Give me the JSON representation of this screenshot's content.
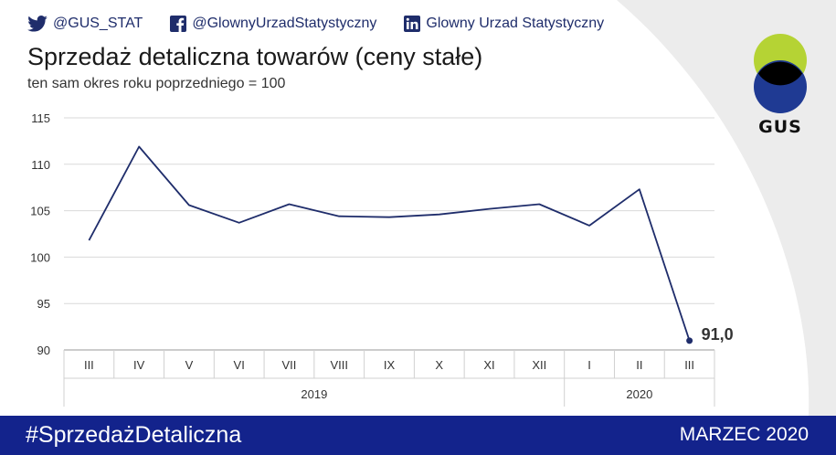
{
  "social": {
    "twitter": "@GUS_STAT",
    "facebook": "@GlownyUrzadStatystyczny",
    "linkedin": "Glowny Urzad Statystyczny"
  },
  "header": {
    "title": "Sprzedaż detaliczna towarów (ceny stałe)",
    "subtitle": "ten sam okres roku poprzedniego = 100"
  },
  "logo": {
    "text": "GUS",
    "colors": [
      "#b5d334",
      "#1f3a93",
      "#000000"
    ]
  },
  "footer": {
    "hashtag": "#SprzedażDetaliczna",
    "period": "MARZEC 2020",
    "background": "#13238c"
  },
  "chart_data": {
    "type": "line",
    "categories": [
      "III",
      "IV",
      "V",
      "VI",
      "VII",
      "VIII",
      "IX",
      "X",
      "XI",
      "XII",
      "I",
      "II",
      "III"
    ],
    "groups": [
      {
        "label": "2019",
        "count": 10
      },
      {
        "label": "2020",
        "count": 3
      }
    ],
    "values": [
      101.8,
      111.9,
      105.6,
      103.7,
      105.7,
      104.4,
      104.3,
      104.6,
      105.2,
      105.7,
      103.4,
      107.3,
      91.0
    ],
    "ylim": [
      90,
      115
    ],
    "yticks": [
      90,
      95,
      100,
      105,
      110,
      115
    ],
    "last_value_label": "91,0",
    "line_color": "#1f2d6b",
    "grid": true
  }
}
